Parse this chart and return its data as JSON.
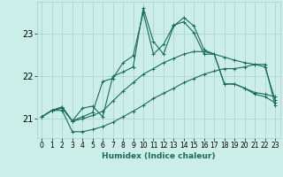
{
  "xlabel": "Humidex (Indice chaleur)",
  "bg_color": "#cceee8",
  "grid_color": "#aacccc",
  "line_color": "#1a6b5a",
  "xlim": [
    -0.5,
    23.5
  ],
  "ylim": [
    20.55,
    23.75
  ],
  "yticks": [
    21,
    22,
    23
  ],
  "xticks": [
    0,
    1,
    2,
    3,
    4,
    5,
    6,
    7,
    8,
    9,
    10,
    11,
    12,
    13,
    14,
    15,
    16,
    17,
    18,
    19,
    20,
    21,
    22,
    23
  ],
  "series": {
    "line1_x": [
      0,
      1,
      2,
      3,
      4,
      5,
      6,
      7,
      8,
      9,
      10,
      11,
      12,
      13,
      14,
      15,
      16,
      17,
      18,
      19,
      20,
      21,
      22,
      23
    ],
    "line1_y": [
      21.05,
      21.2,
      21.2,
      20.7,
      20.7,
      20.75,
      20.82,
      20.92,
      21.05,
      21.18,
      21.32,
      21.48,
      21.6,
      21.72,
      21.85,
      21.95,
      22.05,
      22.12,
      22.18,
      22.18,
      22.22,
      22.28,
      22.28,
      21.32
    ],
    "line2_x": [
      0,
      1,
      2,
      3,
      4,
      5,
      6,
      7,
      8,
      9,
      10,
      11,
      12,
      13,
      14,
      15,
      16,
      17,
      18,
      19,
      20,
      21,
      22,
      23
    ],
    "line2_y": [
      21.05,
      21.2,
      21.25,
      20.95,
      21.0,
      21.08,
      21.18,
      21.42,
      21.65,
      21.85,
      22.05,
      22.18,
      22.32,
      22.42,
      22.52,
      22.58,
      22.58,
      22.52,
      22.45,
      22.38,
      22.32,
      22.28,
      22.22,
      21.45
    ],
    "line3_x": [
      0,
      1,
      2,
      3,
      4,
      5,
      6,
      7,
      8,
      9,
      10,
      11,
      12,
      13,
      14,
      15,
      16,
      17,
      18,
      19,
      20,
      21,
      22,
      23
    ],
    "line3_y": [
      21.05,
      21.2,
      21.28,
      20.95,
      21.05,
      21.15,
      21.88,
      21.95,
      22.32,
      22.48,
      23.5,
      22.52,
      22.75,
      23.2,
      23.28,
      23.02,
      22.52,
      22.52,
      21.82,
      21.82,
      21.72,
      21.62,
      21.58,
      21.52
    ],
    "line4_x": [
      0,
      1,
      2,
      3,
      4,
      5,
      6,
      7,
      8,
      9,
      10,
      11,
      12,
      13,
      14,
      15,
      16,
      17,
      18,
      19,
      20,
      21,
      22,
      23
    ],
    "line4_y": [
      21.05,
      21.2,
      21.28,
      20.95,
      21.25,
      21.3,
      21.05,
      22.0,
      22.1,
      22.22,
      23.6,
      22.82,
      22.52,
      23.18,
      23.38,
      23.18,
      22.62,
      22.52,
      21.82,
      21.82,
      21.72,
      21.58,
      21.52,
      21.38
    ]
  },
  "marker": "+",
  "marker_size": 3,
  "linewidth": 0.8,
  "xlabel_fontsize": 6.5,
  "tick_fontsize": 5.5
}
